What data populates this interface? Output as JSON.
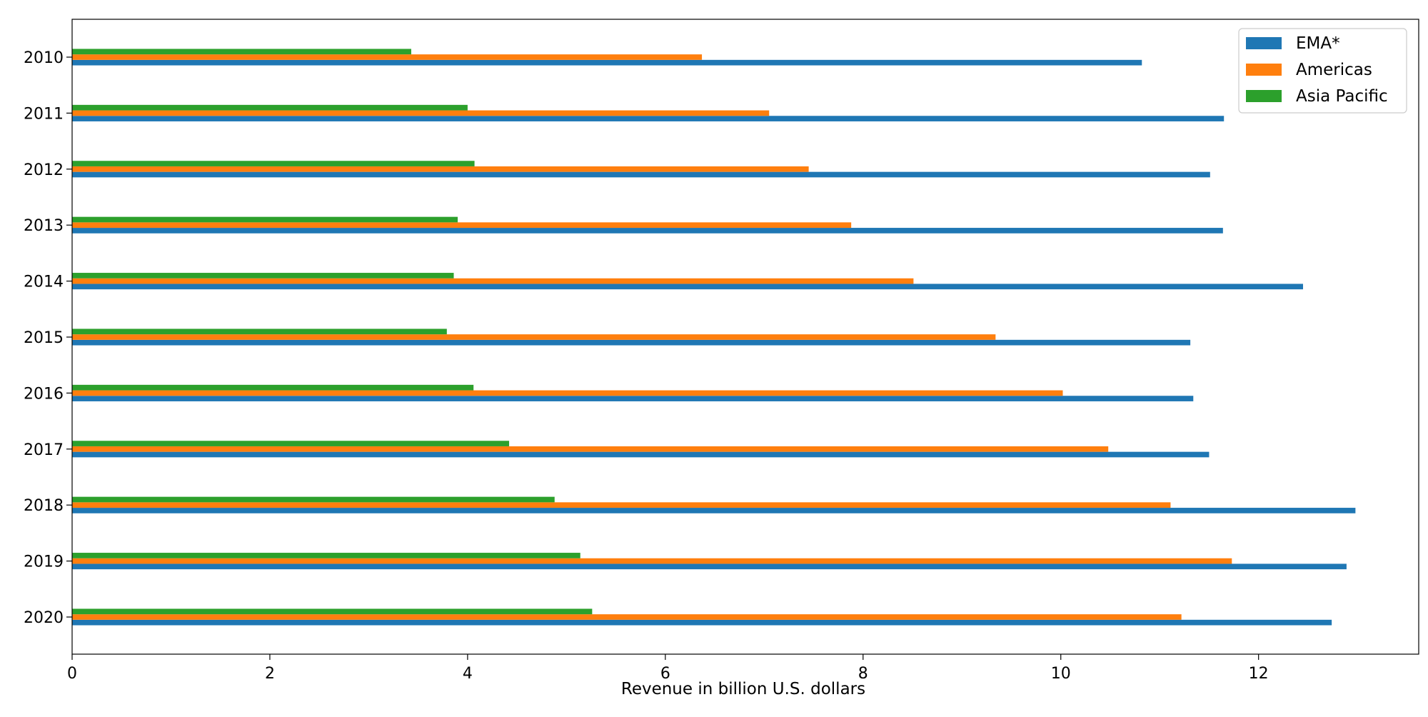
{
  "chart_data": {
    "type": "bar",
    "orientation": "horizontal",
    "title": "",
    "xlabel": "Revenue in billion U.S. dollars",
    "ylabel": "",
    "xlim": [
      0,
      13.62
    ],
    "x_ticks": [
      0,
      2,
      4,
      6,
      8,
      10,
      12
    ],
    "grid": false,
    "legend_position": "top-right",
    "categories": [
      "2010",
      "2011",
      "2012",
      "2013",
      "2014",
      "2015",
      "2016",
      "2017",
      "2018",
      "2019",
      "2020"
    ],
    "series": [
      {
        "name": "EMA*",
        "color": "#1f77b4",
        "values": [
          10.82,
          11.65,
          11.51,
          11.64,
          12.45,
          11.31,
          11.34,
          11.5,
          12.98,
          12.89,
          12.74
        ]
      },
      {
        "name": "Americas",
        "color": "#ff7f0e",
        "values": [
          6.37,
          7.05,
          7.45,
          7.88,
          8.51,
          9.34,
          10.02,
          10.48,
          11.11,
          11.73,
          11.22
        ]
      },
      {
        "name": "Asia Pacific",
        "color": "#2ca02c",
        "values": [
          3.43,
          4.0,
          4.07,
          3.9,
          3.86,
          3.79,
          4.06,
          4.42,
          4.88,
          5.14,
          5.26
        ]
      }
    ]
  }
}
